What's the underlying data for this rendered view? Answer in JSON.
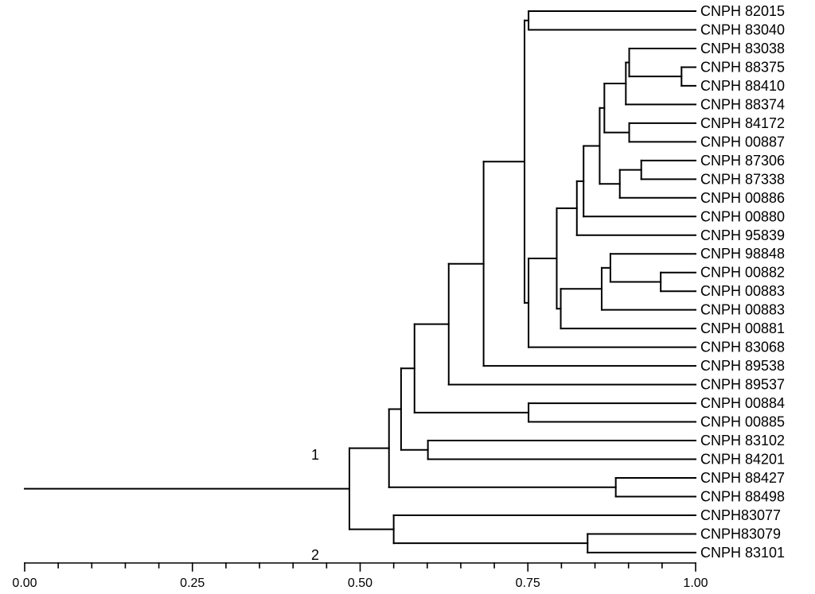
{
  "dendrogram": {
    "leaves": [
      "CNPH 82015",
      "CNPH 83040",
      "CNPH 83038",
      "CNPH 88375",
      "CNPH 88410",
      "CNPH 88374",
      "CNPH 84172",
      "CNPH 00887",
      "CNPH 87306",
      "CNPH 87338",
      "CNPH 00886",
      "CNPH 00880",
      "CNPH 95839",
      "CNPH 98848",
      "CNPH 00882",
      "CNPH 00883",
      "CNPH 00883",
      "CNPH 00881",
      "CNPH 83068",
      "CNPH 89538",
      "CNPH 89537",
      "CNPH 00884",
      "CNPH 00885",
      "CNPH 83102",
      "CNPH 84201",
      "CNPH 88427",
      "CNPH 88498",
      "CNPH83077",
      "CNPH83079",
      "CNPH 83101"
    ],
    "merges": [
      {
        "children": [
          "L0",
          "L1"
        ],
        "value": 0.751
      },
      {
        "children": [
          "L3",
          "L4"
        ],
        "value": 0.979
      },
      {
        "children": [
          "L2",
          "M1"
        ],
        "value": 0.901
      },
      {
        "children": [
          "M2",
          "L5"
        ],
        "value": 0.896
      },
      {
        "children": [
          "L6",
          "L7"
        ],
        "value": 0.901
      },
      {
        "children": [
          "M3",
          "M4"
        ],
        "value": 0.864
      },
      {
        "children": [
          "L8",
          "L9"
        ],
        "value": 0.919
      },
      {
        "children": [
          "M6",
          "L10"
        ],
        "value": 0.887
      },
      {
        "children": [
          "M5",
          "M7"
        ],
        "value": 0.857
      },
      {
        "children": [
          "M8",
          "L11"
        ],
        "value": 0.833
      },
      {
        "children": [
          "M9",
          "L12"
        ],
        "value": 0.823
      },
      {
        "children": [
          "L14",
          "L15"
        ],
        "value": 0.948
      },
      {
        "children": [
          "L13",
          "M11"
        ],
        "value": 0.873
      },
      {
        "children": [
          "M12",
          "L16"
        ],
        "value": 0.86
      },
      {
        "children": [
          "M13",
          "L17"
        ],
        "value": 0.799
      },
      {
        "children": [
          "M10",
          "M14"
        ],
        "value": 0.793
      },
      {
        "children": [
          "M15",
          "L18"
        ],
        "value": 0.751
      },
      {
        "children": [
          "M0",
          "M16"
        ],
        "value": 0.745
      },
      {
        "children": [
          "M17",
          "L19"
        ],
        "value": 0.684
      },
      {
        "children": [
          "M18",
          "L20"
        ],
        "value": 0.632
      },
      {
        "children": [
          "L21",
          "L22"
        ],
        "value": 0.751
      },
      {
        "children": [
          "M19",
          "M20"
        ],
        "value": 0.581
      },
      {
        "children": [
          "L23",
          "L24"
        ],
        "value": 0.601
      },
      {
        "children": [
          "M21",
          "M22"
        ],
        "value": 0.561
      },
      {
        "children": [
          "L25",
          "L26"
        ],
        "value": 0.881
      },
      {
        "children": [
          "M23",
          "M24"
        ],
        "value": 0.543
      },
      {
        "children": [
          "L28",
          "L29"
        ],
        "value": 0.839
      },
      {
        "children": [
          "L27",
          "M26"
        ],
        "value": 0.55
      },
      {
        "children": [
          "M25",
          "M27"
        ],
        "value": 0.484
      }
    ],
    "root_stem_start": 0.0,
    "cluster_labels": [
      "1",
      "2"
    ],
    "axis": {
      "min": 0.0,
      "max": 1.0,
      "major_ticks": [
        0.0,
        0.25,
        0.5,
        0.75,
        1.0
      ],
      "tick_labels": [
        "0.00",
        "0.25",
        "0.50",
        "0.75",
        "1.00"
      ],
      "minor_step": 0.05
    }
  }
}
